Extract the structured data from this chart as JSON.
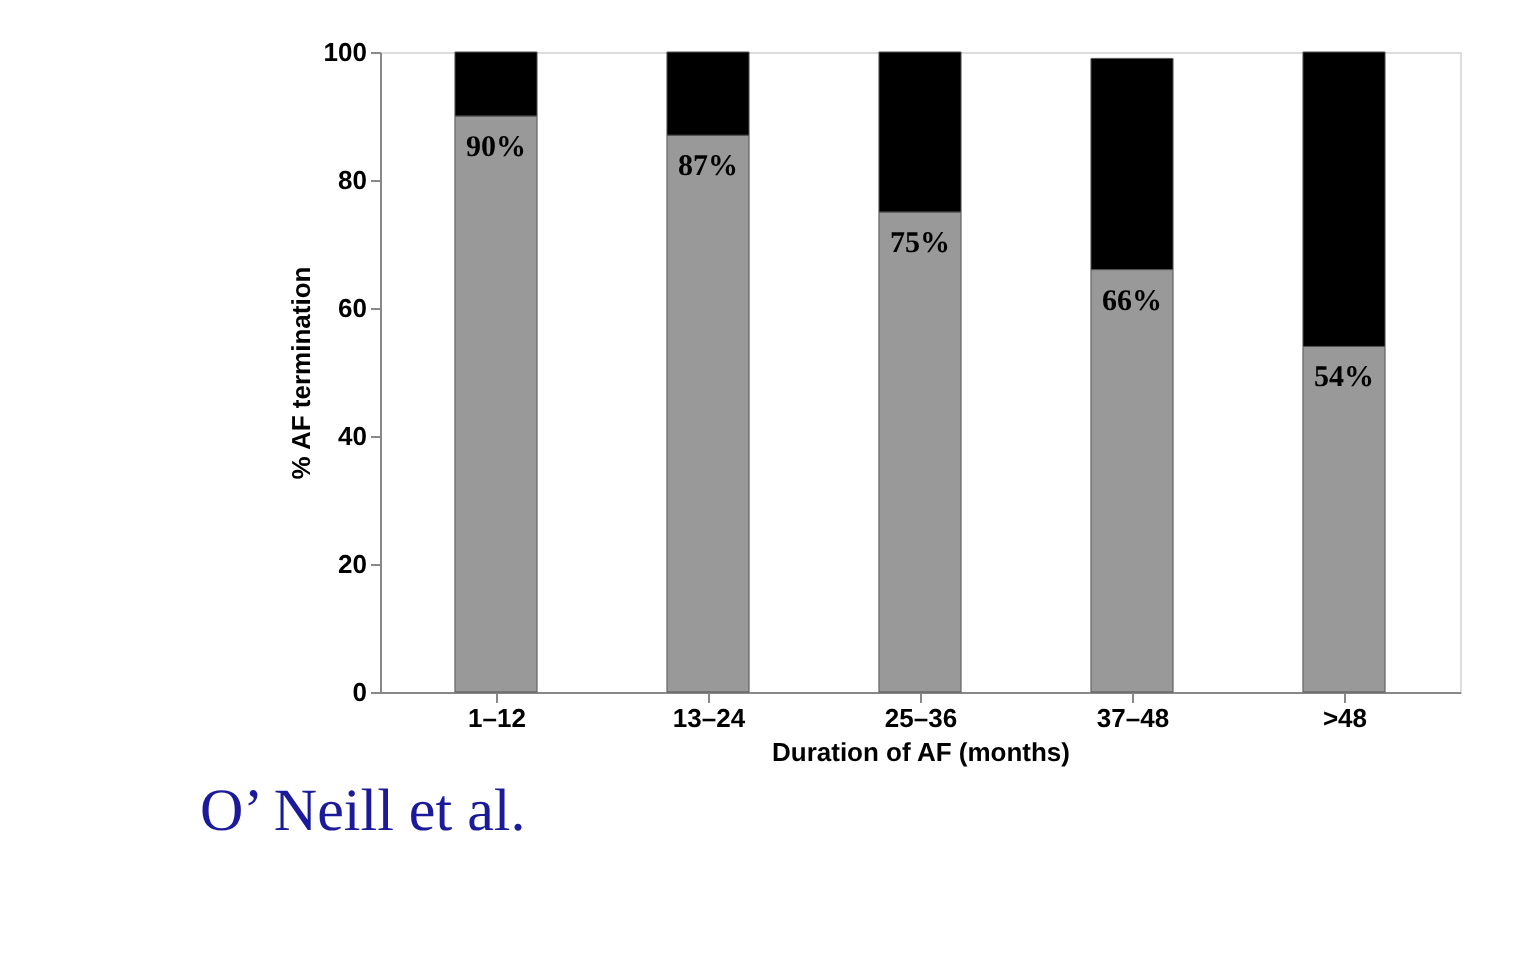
{
  "chart_data": {
    "type": "bar",
    "stacked": true,
    "xlabel": "Duration of AF (months)",
    "ylabel": "% AF termination",
    "categories": [
      "1–12",
      "13–24",
      "25–36",
      "37–48",
      ">48"
    ],
    "series": [
      {
        "color": "#999999",
        "values": [
          90,
          87,
          75,
          66,
          54
        ],
        "value_labels": [
          "90%",
          "87%",
          "75%",
          "66%",
          "54%"
        ]
      },
      {
        "color": "#000000",
        "values": [
          10,
          13,
          25,
          33,
          46
        ]
      }
    ],
    "ylim": [
      0,
      100
    ],
    "yticks": [
      0,
      20,
      40,
      60,
      80,
      100
    ],
    "grid": false,
    "annotations": [
      "O’ Neill et al."
    ]
  }
}
